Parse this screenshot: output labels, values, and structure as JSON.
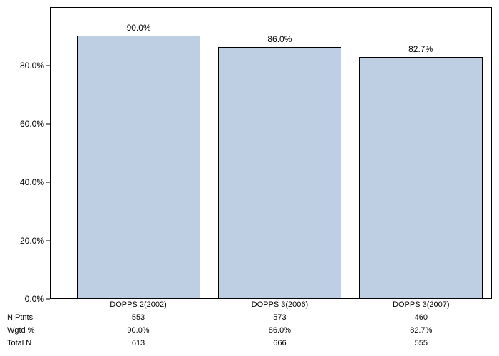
{
  "chart": {
    "type": "bar",
    "background_color": "#ffffff",
    "border_color": "#000000",
    "bar_fill": "#becfe3",
    "bar_border": "#000000",
    "label_fontsize": 12,
    "tick_fontsize": 12,
    "table_fontsize": 11,
    "ylim": [
      0,
      100
    ],
    "yticks": [
      {
        "value": 0,
        "label": "0.0%"
      },
      {
        "value": 20,
        "label": "20.0%"
      },
      {
        "value": 40,
        "label": "40.0%"
      },
      {
        "value": 60,
        "label": "60.0%"
      },
      {
        "value": 80,
        "label": "80.0%"
      }
    ],
    "categories": [
      {
        "label": "DOPPS 2(2002)",
        "value": 90.0,
        "value_label": "90.0%"
      },
      {
        "label": "DOPPS 3(2006)",
        "value": 86.0,
        "value_label": "86.0%"
      },
      {
        "label": "DOPPS 3(2007)",
        "value": 82.7,
        "value_label": "82.7%"
      }
    ],
    "bar_positions_pct": [
      20,
      52,
      84
    ],
    "bar_width_pct": 28
  },
  "table": {
    "rows": [
      {
        "header": "N Ptnts",
        "cells": [
          "553",
          "573",
          "460"
        ]
      },
      {
        "header": "Wgtd %",
        "cells": [
          "90.0%",
          "86.0%",
          "82.7%"
        ]
      },
      {
        "header": "Total N",
        "cells": [
          "613",
          "666",
          "555"
        ]
      }
    ]
  }
}
